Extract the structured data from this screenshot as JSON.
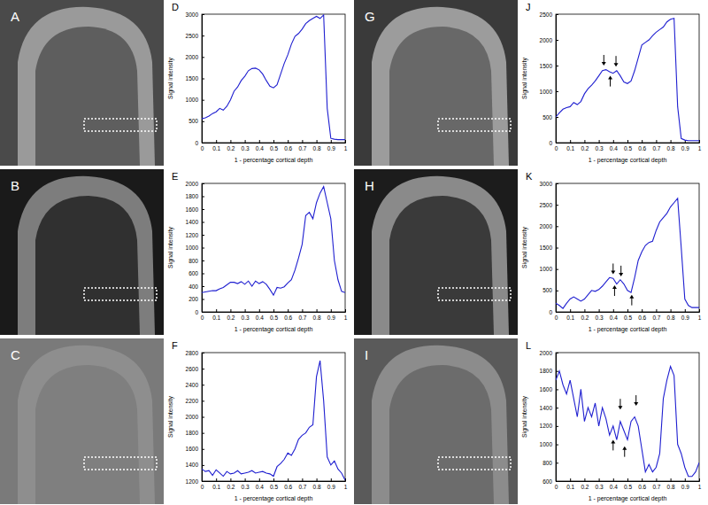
{
  "chart_data": [
    {
      "type": "line",
      "title": "D",
      "x_label": "1 - percentage cortical depth",
      "y_label": "Signal intensity",
      "color": "#1f1fd0",
      "x": [
        0,
        0.025,
        0.05,
        0.075,
        0.1,
        0.125,
        0.15,
        0.175,
        0.2,
        0.225,
        0.25,
        0.275,
        0.3,
        0.325,
        0.35,
        0.375,
        0.4,
        0.425,
        0.45,
        0.475,
        0.5,
        0.525,
        0.55,
        0.575,
        0.6,
        0.625,
        0.65,
        0.675,
        0.7,
        0.725,
        0.75,
        0.775,
        0.8,
        0.825,
        0.85,
        0.875,
        0.9,
        0.925,
        0.95,
        0.975,
        1
      ],
      "values": [
        560,
        580,
        620,
        680,
        720,
        800,
        760,
        850,
        1000,
        1200,
        1300,
        1450,
        1550,
        1680,
        1730,
        1740,
        1700,
        1600,
        1450,
        1320,
        1280,
        1350,
        1600,
        1850,
        2050,
        2300,
        2480,
        2550,
        2650,
        2780,
        2850,
        2900,
        2950,
        2900,
        2980,
        800,
        100,
        80,
        70,
        70,
        70
      ],
      "xlim": [
        0,
        1
      ],
      "xticks": [
        0,
        0.1,
        0.2,
        0.3,
        0.4,
        0.5,
        0.6,
        0.7,
        0.8,
        0.9,
        1
      ],
      "ylim": [
        0,
        3000
      ],
      "yticks": [
        0,
        500,
        1000,
        1500,
        2000,
        2500,
        3000
      ]
    },
    {
      "type": "line",
      "title": "E",
      "x_label": "1 - percentage cortical depth",
      "y_label": "Signal intensity",
      "color": "#1f1fd0",
      "x": [
        0,
        0.025,
        0.05,
        0.075,
        0.1,
        0.125,
        0.15,
        0.175,
        0.2,
        0.225,
        0.25,
        0.275,
        0.3,
        0.325,
        0.35,
        0.375,
        0.4,
        0.425,
        0.45,
        0.475,
        0.5,
        0.525,
        0.55,
        0.575,
        0.6,
        0.625,
        0.65,
        0.675,
        0.7,
        0.725,
        0.75,
        0.775,
        0.8,
        0.825,
        0.85,
        0.875,
        0.9,
        0.925,
        0.95,
        0.975,
        1
      ],
      "values": [
        300,
        310,
        320,
        330,
        330,
        360,
        380,
        420,
        460,
        460,
        440,
        470,
        430,
        480,
        400,
        480,
        440,
        470,
        430,
        350,
        260,
        380,
        370,
        390,
        450,
        500,
        650,
        840,
        1050,
        1500,
        1550,
        1450,
        1700,
        1850,
        1950,
        1700,
        1450,
        800,
        500,
        320,
        300
      ],
      "xlim": [
        0,
        1
      ],
      "xticks": [
        0,
        0.1,
        0.2,
        0.3,
        0.4,
        0.5,
        0.6,
        0.7,
        0.8,
        0.9,
        1
      ],
      "ylim": [
        0,
        2000
      ],
      "yticks": [
        0,
        200,
        400,
        600,
        800,
        1000,
        1200,
        1400,
        1600,
        1800,
        2000
      ]
    },
    {
      "type": "line",
      "title": "F",
      "x_label": "1 - percentage cortical depth",
      "y_label": "Signal intensity",
      "color": "#1f1fd0",
      "x": [
        0,
        0.025,
        0.05,
        0.075,
        0.1,
        0.125,
        0.15,
        0.175,
        0.2,
        0.225,
        0.25,
        0.275,
        0.3,
        0.325,
        0.35,
        0.375,
        0.4,
        0.425,
        0.45,
        0.475,
        0.5,
        0.525,
        0.55,
        0.575,
        0.6,
        0.625,
        0.65,
        0.675,
        0.7,
        0.725,
        0.75,
        0.775,
        0.8,
        0.825,
        0.85,
        0.875,
        0.9,
        0.925,
        0.95,
        0.975,
        1
      ],
      "values": [
        1350,
        1320,
        1330,
        1270,
        1340,
        1300,
        1260,
        1320,
        1290,
        1300,
        1330,
        1290,
        1300,
        1310,
        1330,
        1300,
        1310,
        1320,
        1300,
        1290,
        1260,
        1380,
        1420,
        1470,
        1550,
        1520,
        1600,
        1720,
        1770,
        1800,
        1870,
        1900,
        2500,
        2700,
        2200,
        1500,
        1400,
        1450,
        1350,
        1300,
        1210
      ],
      "xlim": [
        0,
        1
      ],
      "xticks": [
        0,
        0.1,
        0.2,
        0.3,
        0.4,
        0.5,
        0.6,
        0.7,
        0.8,
        0.9,
        1
      ],
      "ylim": [
        1200,
        2800
      ],
      "yticks": [
        1200,
        1400,
        1600,
        1800,
        2000,
        2200,
        2400,
        2600,
        2800
      ]
    },
    {
      "type": "line",
      "title": "J",
      "x_label": "1 - percentage cortical depth",
      "y_label": "Signal intensity",
      "color": "#1f1fd0",
      "x": [
        0,
        0.025,
        0.05,
        0.075,
        0.1,
        0.125,
        0.15,
        0.175,
        0.2,
        0.225,
        0.25,
        0.275,
        0.3,
        0.325,
        0.35,
        0.375,
        0.4,
        0.425,
        0.45,
        0.475,
        0.5,
        0.525,
        0.55,
        0.575,
        0.6,
        0.625,
        0.65,
        0.675,
        0.7,
        0.725,
        0.75,
        0.775,
        0.8,
        0.825,
        0.85,
        0.875,
        0.9,
        0.925,
        0.95,
        0.975,
        1
      ],
      "values": [
        500,
        580,
        650,
        680,
        700,
        780,
        740,
        800,
        950,
        1050,
        1120,
        1200,
        1300,
        1400,
        1420,
        1380,
        1350,
        1400,
        1300,
        1180,
        1150,
        1200,
        1400,
        1650,
        1900,
        1950,
        2000,
        2080,
        2150,
        2200,
        2250,
        2350,
        2400,
        2420,
        700,
        80,
        50,
        40,
        40,
        40,
        40
      ],
      "xlim": [
        0,
        1
      ],
      "xticks": [
        0,
        0.1,
        0.2,
        0.3,
        0.4,
        0.5,
        0.6,
        0.7,
        0.8,
        0.9,
        1
      ],
      "ylim": [
        0,
        2500
      ],
      "yticks": [
        0,
        500,
        1000,
        1500,
        2000,
        2500
      ],
      "arrows": {
        "x": [
          0.335,
          0.42,
          0.38
        ],
        "y": [
          1500,
          1480,
          1300
        ],
        "direction": [
          "down",
          "down",
          "up"
        ]
      }
    },
    {
      "type": "line",
      "title": "K",
      "x_label": "1 - percentage cortical depth",
      "y_label": "Signal intensity",
      "color": "#1f1fd0",
      "x": [
        0,
        0.025,
        0.05,
        0.075,
        0.1,
        0.125,
        0.15,
        0.175,
        0.2,
        0.225,
        0.25,
        0.275,
        0.3,
        0.325,
        0.35,
        0.375,
        0.4,
        0.425,
        0.45,
        0.475,
        0.5,
        0.525,
        0.55,
        0.575,
        0.6,
        0.625,
        0.65,
        0.675,
        0.7,
        0.725,
        0.75,
        0.775,
        0.8,
        0.825,
        0.85,
        0.875,
        0.9,
        0.925,
        0.95,
        0.975,
        1
      ],
      "values": [
        200,
        150,
        80,
        200,
        300,
        350,
        300,
        250,
        300,
        400,
        500,
        480,
        520,
        600,
        700,
        800,
        780,
        650,
        750,
        650,
        500,
        450,
        800,
        1200,
        1400,
        1550,
        1620,
        1650,
        1900,
        2100,
        2200,
        2300,
        2450,
        2550,
        2650,
        1500,
        300,
        150,
        100,
        100,
        100
      ],
      "xlim": [
        0,
        1
      ],
      "xticks": [
        0,
        0.1,
        0.2,
        0.3,
        0.4,
        0.5,
        0.6,
        0.7,
        0.8,
        0.9,
        1
      ],
      "ylim": [
        0,
        3000
      ],
      "yticks": [
        0,
        500,
        1000,
        1500,
        2000,
        2500,
        3000
      ],
      "arrows": {
        "x": [
          0.4,
          0.455,
          0.41,
          0.53
        ],
        "y": [
          880,
          830,
          620,
          400
        ],
        "direction": [
          "down",
          "down",
          "up",
          "up"
        ]
      }
    },
    {
      "type": "line",
      "title": "L",
      "x_label": "1 - percentage cortical depth",
      "y_label": "Signal intensity",
      "color": "#1f1fd0",
      "x": [
        0,
        0.025,
        0.05,
        0.075,
        0.1,
        0.125,
        0.15,
        0.175,
        0.2,
        0.225,
        0.25,
        0.275,
        0.3,
        0.325,
        0.35,
        0.375,
        0.4,
        0.425,
        0.45,
        0.475,
        0.5,
        0.525,
        0.55,
        0.575,
        0.6,
        0.625,
        0.65,
        0.675,
        0.7,
        0.725,
        0.75,
        0.775,
        0.8,
        0.825,
        0.85,
        0.875,
        0.9,
        0.925,
        0.95,
        0.975,
        1
      ],
      "values": [
        1700,
        1800,
        1650,
        1550,
        1700,
        1500,
        1300,
        1600,
        1250,
        1400,
        1300,
        1450,
        1200,
        1400,
        1280,
        1100,
        1200,
        1050,
        1250,
        1150,
        1050,
        1250,
        1300,
        1200,
        950,
        700,
        780,
        700,
        750,
        900,
        1500,
        1700,
        1850,
        1750,
        1000,
        900,
        750,
        650,
        650,
        700,
        800
      ],
      "xlim": [
        0,
        1
      ],
      "xticks": [
        0,
        0.1,
        0.2,
        0.3,
        0.4,
        0.5,
        0.6,
        0.7,
        0.8,
        0.9,
        1
      ],
      "ylim": [
        600,
        2000
      ],
      "yticks": [
        600,
        800,
        1000,
        1200,
        1400,
        1600,
        1800,
        2000
      ],
      "arrows": {
        "x": [
          0.45,
          0.56,
          0.4,
          0.48
        ],
        "y": [
          1380,
          1420,
          1050,
          980
        ],
        "direction": [
          "down",
          "down",
          "up",
          "up"
        ]
      }
    }
  ],
  "images": [
    {
      "label": "A"
    },
    {
      "label": "B"
    },
    {
      "label": "C"
    },
    {
      "label": "G"
    },
    {
      "label": "H"
    },
    {
      "label": "I"
    }
  ]
}
